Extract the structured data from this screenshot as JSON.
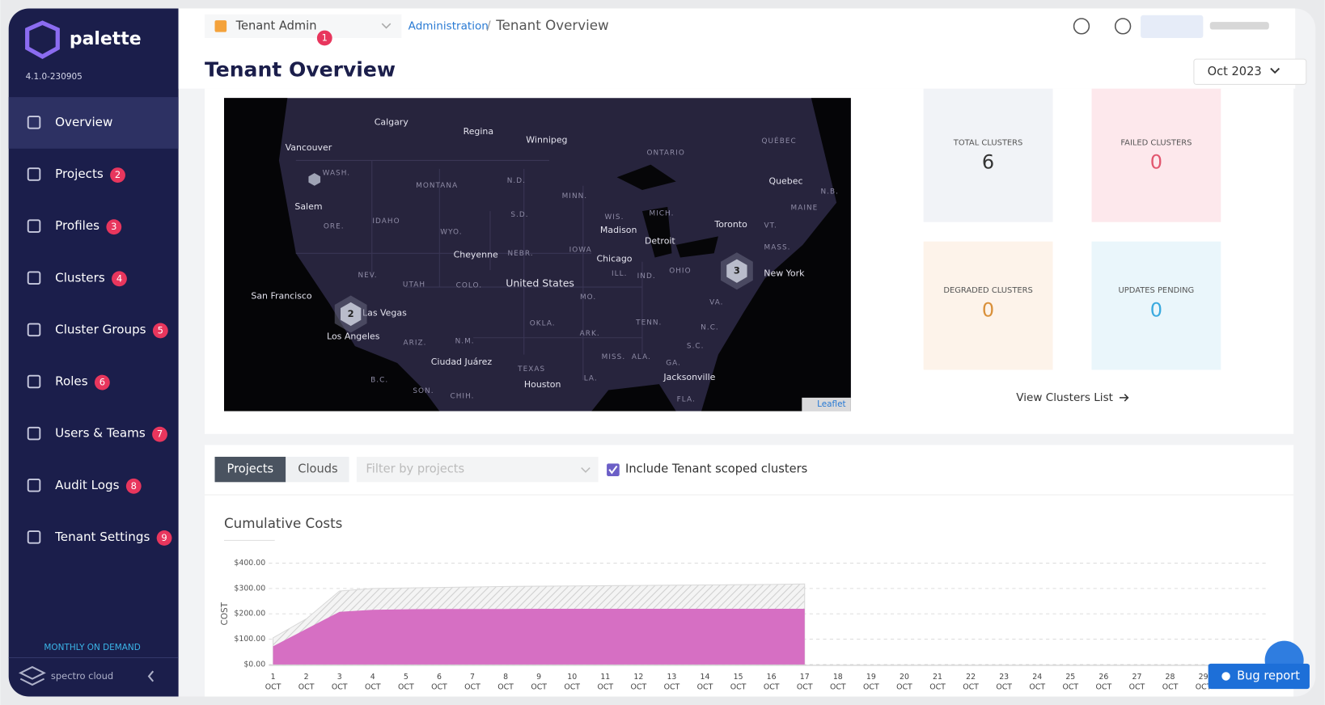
{
  "sidebar": {
    "brand": "palette",
    "version": "4.1.0-230905",
    "nav": [
      {
        "label": "Overview"
      },
      {
        "label": "Projects",
        "badge": 2
      },
      {
        "label": "Profiles",
        "badge": 3
      },
      {
        "label": "Clusters",
        "badge": 4
      },
      {
        "label": "Cluster Groups",
        "badge": 5
      },
      {
        "label": "Roles",
        "badge": 6
      },
      {
        "label": "Users & Teams",
        "badge": 7
      },
      {
        "label": "Audit Logs",
        "badge": 8
      },
      {
        "label": "Tenant Settings",
        "badge": 9
      }
    ],
    "plan": "MONTHLY ON DEMAND",
    "footer_brand": "spectro cloud"
  },
  "header": {
    "scope": "Tenant Admin",
    "scope_badge": 1,
    "breadcrumb": [
      "Administration",
      "/",
      "Tenant Overview"
    ],
    "title": "Tenant Overview",
    "period": "Oct 2023"
  },
  "map": {
    "labels": [
      "Calgary",
      "Regina",
      "Winnipeg",
      "Vancouver",
      "ONTARIO",
      "QUÉBEC",
      "WASH.",
      "MONTANA",
      "N.D.",
      "MINN.",
      "Quebec",
      "N.B.",
      "Salem",
      "MAINE",
      "IDAHO",
      "ORE.",
      "S.D.",
      "WIS.",
      "MICH.",
      "Madison",
      "WYO.",
      "Toronto",
      "VT.",
      "Detroit",
      "IOWA",
      "Cheyenne",
      "NEBR.",
      "MASS.",
      "Chicago",
      "NEV.",
      "ILL.",
      "IND.",
      "OHIO",
      "UTAH",
      "COLO.",
      "United States",
      "New York",
      "San Francisco",
      "Las Vegas",
      "MO.",
      "VA.",
      "TENN.",
      "OKLA.",
      "Los Angeles",
      "ARK.",
      "N.C.",
      "ARIZ.",
      "N.M.",
      "S.C.",
      "MISS.",
      "ALA.",
      "GA.",
      "Ciudad Juárez",
      "TEXAS",
      "Jacksonville",
      "LA.",
      "Houston",
      "B.C.",
      "SON.",
      "CHIH.",
      "FLA."
    ],
    "clusters": [
      2,
      3
    ],
    "attribution": "Leaflet"
  },
  "stats": [
    {
      "label": "TOTAL CLUSTERS",
      "value": 6
    },
    {
      "label": "FAILED CLUSTERS",
      "value": 0
    },
    {
      "label": "DEGRADED CLUSTERS",
      "value": 0
    },
    {
      "label": "UPDATES PENDING",
      "value": 0
    }
  ],
  "stats_link": "View Clusters List",
  "filters": {
    "tabs": [
      "Projects",
      "Clouds"
    ],
    "placeholder": "Filter by projects",
    "checkbox": "Include Tenant scoped clusters"
  },
  "chart_data": {
    "type": "area",
    "title": "Cumulative Costs",
    "y_label": "COST",
    "month": "OCT",
    "categories": [
      "1",
      "2",
      "3",
      "4",
      "5",
      "6",
      "7",
      "8",
      "9",
      "10",
      "11",
      "12",
      "13",
      "14",
      "15",
      "16",
      "17",
      "18",
      "19",
      "20",
      "21",
      "22",
      "23",
      "24",
      "25",
      "26",
      "27",
      "28",
      "29"
    ],
    "series": [
      {
        "color": "#d9d9d9",
        "values": [
          105,
          180,
          290,
          300,
          302,
          304,
          306,
          308,
          309,
          310,
          311,
          312,
          313,
          314,
          315,
          316,
          318,
          null,
          null,
          null,
          null,
          null,
          null,
          null,
          null,
          null,
          null,
          null,
          null
        ]
      },
      {
        "color": "#d66fc3",
        "values": [
          72,
          140,
          208,
          216,
          218,
          219,
          219,
          219,
          220,
          220,
          220,
          220,
          220,
          220,
          220,
          220,
          220,
          null,
          null,
          null,
          null,
          null,
          null,
          null,
          null,
          null,
          null,
          null,
          null
        ]
      }
    ],
    "ylim": [
      0,
      400
    ],
    "yticks": [
      {
        "value": 0,
        "label": "$0.00"
      },
      {
        "value": 100,
        "label": "$100.00"
      },
      {
        "value": 200,
        "label": "$200.00"
      },
      {
        "value": 300,
        "label": "$300.00"
      },
      {
        "value": 400,
        "label": "$400.00"
      }
    ],
    "grid": true
  },
  "bug_report": "Bug report"
}
